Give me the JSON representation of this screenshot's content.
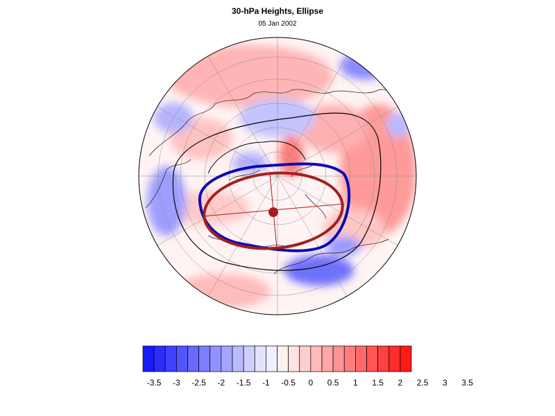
{
  "title": "30-hPa Heights, Ellipse",
  "subtitle": "05 Jan 2002",
  "colorbar": {
    "tick_labels": [
      "-3.5",
      "-3",
      "-2.5",
      "-2",
      "-1.5",
      "-1",
      "-0.5",
      "0",
      "0.5",
      "1",
      "1.5",
      "2",
      "2.5",
      "3",
      "3.5"
    ],
    "colors": [
      "#1a1aff",
      "#2c2cff",
      "#4040ff",
      "#5555ff",
      "#6969ff",
      "#7d7dff",
      "#9292ff",
      "#a6a6ff",
      "#babaff",
      "#cfcfff",
      "#e3e3ff",
      "#f0f0ff",
      "#fff0f0",
      "#ffe3e3",
      "#ffcfcf",
      "#ffbaba",
      "#ffa6a6",
      "#ff9292",
      "#ff7d7d",
      "#ff6969",
      "#ff5555",
      "#ff4040",
      "#ff2c2c",
      "#ff1a1a"
    ]
  },
  "overlays": {
    "observed_ellipse_color": "#0a0ab4",
    "fitted_ellipse_color": "#a51e1e",
    "center_marker_color": "#a51e1e",
    "contour_color": "#000000"
  }
}
